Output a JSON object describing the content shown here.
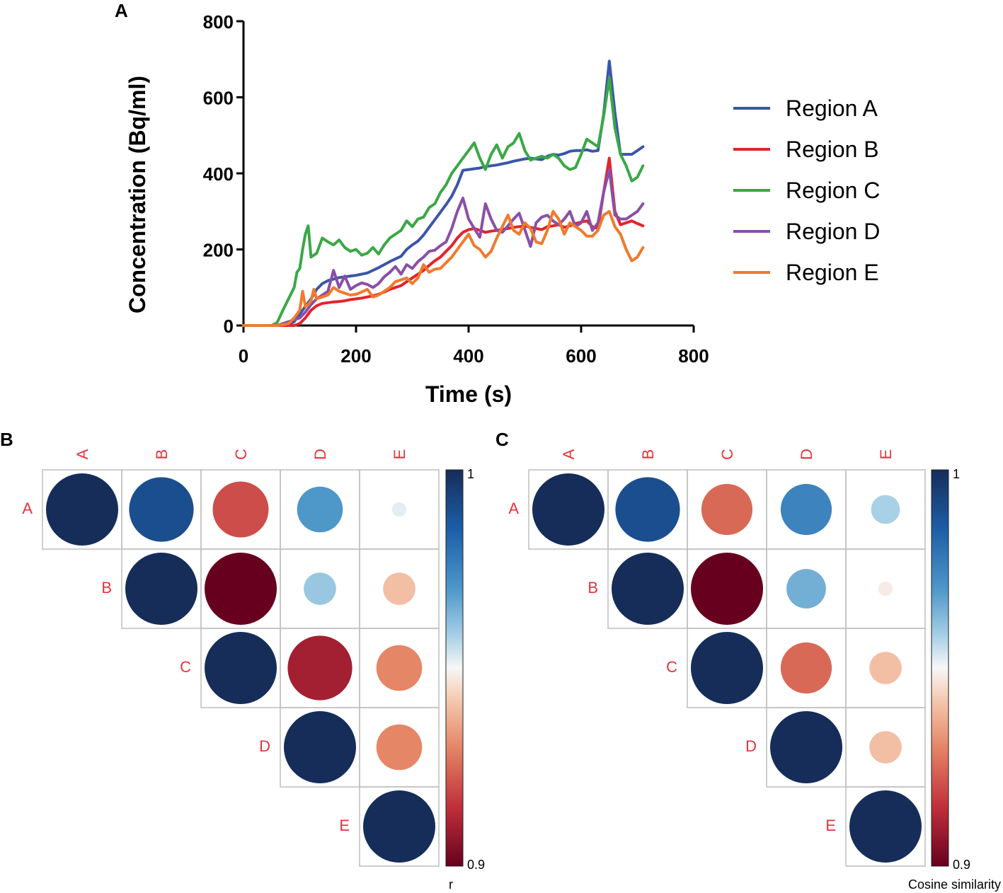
{
  "panel_labels": {
    "a": "A",
    "b": "B",
    "c": "C"
  },
  "chart_data": [
    {
      "type": "line",
      "panel": "A",
      "title": "",
      "xlabel": "Time (s)",
      "ylabel": "Concentration (Bq/ml)",
      "xlim": [
        0,
        800
      ],
      "ylim": [
        0,
        800
      ],
      "xticks": [
        0,
        200,
        400,
        600,
        800
      ],
      "yticks": [
        0,
        200,
        400,
        600,
        800
      ],
      "xtick_labels": [
        "0",
        "200",
        "400",
        "600",
        "800"
      ],
      "ytick_labels": [
        "0",
        "200",
        "400",
        "600",
        "800"
      ],
      "grid": false,
      "legend_position": "right",
      "series": [
        {
          "name": "Region A",
          "color": "#3a56a8",
          "x": [
            0,
            10,
            20,
            30,
            40,
            50,
            60,
            70,
            80,
            90,
            100,
            110,
            120,
            130,
            140,
            150,
            160,
            170,
            180,
            190,
            200,
            210,
            220,
            230,
            240,
            250,
            260,
            270,
            280,
            290,
            300,
            310,
            320,
            330,
            340,
            350,
            360,
            370,
            380,
            390,
            400,
            410,
            420,
            430,
            440,
            450,
            460,
            470,
            480,
            490,
            500,
            510,
            520,
            530,
            540,
            550,
            560,
            570,
            580,
            590,
            600,
            610,
            620,
            630,
            640,
            650,
            660,
            670,
            680,
            690,
            700,
            710
          ],
          "y": [
            0,
            0,
            0,
            0,
            0,
            0,
            0,
            0,
            2,
            10,
            30,
            50,
            70,
            95,
            110,
            118,
            122,
            126,
            128,
            130,
            132,
            135,
            138,
            145,
            152,
            160,
            168,
            175,
            182,
            200,
            212,
            222,
            238,
            258,
            278,
            298,
            318,
            340,
            370,
            408,
            410,
            412,
            414,
            418,
            420,
            422,
            425,
            428,
            432,
            435,
            438,
            440,
            438,
            436,
            445,
            450,
            448,
            452,
            458,
            460,
            460,
            462,
            458,
            460,
            555,
            695,
            560,
            450,
            450,
            450,
            460,
            470
          ]
        },
        {
          "name": "Region B",
          "color": "#e5222b",
          "x": [
            0,
            10,
            20,
            30,
            40,
            50,
            60,
            70,
            80,
            90,
            100,
            110,
            120,
            130,
            140,
            150,
            160,
            170,
            180,
            190,
            200,
            210,
            220,
            230,
            240,
            250,
            260,
            270,
            280,
            290,
            300,
            310,
            320,
            330,
            340,
            350,
            360,
            370,
            380,
            390,
            400,
            410,
            420,
            430,
            440,
            450,
            460,
            470,
            480,
            490,
            500,
            510,
            520,
            530,
            540,
            550,
            560,
            570,
            580,
            590,
            600,
            610,
            620,
            630,
            640,
            650,
            660,
            670,
            680,
            690,
            700,
            710
          ],
          "y": [
            0,
            0,
            0,
            0,
            0,
            0,
            0,
            0,
            0,
            0,
            5,
            20,
            40,
            52,
            58,
            60,
            62,
            63,
            65,
            68,
            70,
            72,
            75,
            78,
            82,
            88,
            95,
            100,
            105,
            115,
            125,
            135,
            145,
            158,
            170,
            180,
            195,
            210,
            230,
            245,
            252,
            255,
            250,
            245,
            248,
            250,
            253,
            255,
            258,
            260,
            262,
            258,
            255,
            252,
            260,
            262,
            265,
            258,
            262,
            268,
            272,
            275,
            260,
            255,
            350,
            440,
            300,
            265,
            270,
            275,
            268,
            262
          ]
        },
        {
          "name": "Region C",
          "color": "#3aa845",
          "x": [
            0,
            10,
            20,
            30,
            40,
            50,
            60,
            70,
            80,
            90,
            95,
            100,
            105,
            110,
            115,
            120,
            130,
            140,
            150,
            160,
            170,
            180,
            190,
            200,
            210,
            220,
            230,
            240,
            250,
            260,
            270,
            280,
            290,
            300,
            310,
            320,
            330,
            340,
            350,
            360,
            370,
            380,
            390,
            400,
            410,
            420,
            430,
            440,
            450,
            460,
            470,
            480,
            490,
            500,
            510,
            520,
            530,
            540,
            550,
            560,
            570,
            580,
            590,
            600,
            610,
            620,
            630,
            640,
            650,
            660,
            670,
            680,
            690,
            700,
            710
          ],
          "y": [
            0,
            0,
            0,
            0,
            0,
            0,
            8,
            40,
            70,
            100,
            140,
            150,
            200,
            240,
            262,
            180,
            190,
            230,
            220,
            212,
            225,
            205,
            195,
            200,
            185,
            190,
            205,
            188,
            212,
            230,
            240,
            250,
            275,
            260,
            280,
            285,
            310,
            320,
            350,
            370,
            400,
            420,
            440,
            460,
            480,
            440,
            410,
            450,
            475,
            440,
            470,
            480,
            505,
            460,
            435,
            440,
            445,
            440,
            450,
            440,
            420,
            410,
            415,
            450,
            490,
            480,
            470,
            550,
            650,
            520,
            450,
            420,
            380,
            390,
            420
          ]
        },
        {
          "name": "Region D",
          "color": "#8a4fa8",
          "x": [
            0,
            10,
            20,
            30,
            40,
            50,
            60,
            70,
            80,
            90,
            100,
            110,
            120,
            130,
            140,
            150,
            160,
            170,
            180,
            190,
            200,
            210,
            220,
            230,
            240,
            250,
            260,
            270,
            280,
            290,
            300,
            310,
            320,
            330,
            340,
            350,
            360,
            370,
            380,
            390,
            400,
            410,
            420,
            430,
            440,
            450,
            460,
            470,
            480,
            490,
            500,
            510,
            520,
            530,
            540,
            550,
            560,
            570,
            580,
            590,
            600,
            610,
            620,
            630,
            640,
            650,
            660,
            670,
            680,
            690,
            700,
            710
          ],
          "y": [
            0,
            0,
            0,
            0,
            0,
            0,
            0,
            5,
            10,
            15,
            20,
            35,
            55,
            70,
            80,
            90,
            145,
            100,
            130,
            95,
            105,
            112,
            108,
            100,
            110,
            128,
            140,
            155,
            135,
            160,
            150,
            168,
            180,
            195,
            198,
            210,
            220,
            255,
            300,
            335,
            280,
            255,
            232,
            320,
            280,
            250,
            245,
            262,
            280,
            295,
            252,
            208,
            270,
            285,
            290,
            275,
            265,
            280,
            300,
            260,
            270,
            300,
            250,
            270,
            350,
            410,
            290,
            280,
            280,
            290,
            300,
            320
          ]
        },
        {
          "name": "Region E",
          "color": "#f07a2b",
          "x": [
            0,
            10,
            20,
            30,
            40,
            50,
            60,
            70,
            80,
            90,
            100,
            105,
            110,
            115,
            120,
            125,
            130,
            140,
            150,
            160,
            170,
            180,
            190,
            200,
            210,
            220,
            230,
            240,
            250,
            260,
            270,
            280,
            290,
            300,
            310,
            320,
            330,
            340,
            350,
            360,
            370,
            380,
            390,
            400,
            410,
            420,
            430,
            440,
            450,
            460,
            470,
            480,
            490,
            500,
            510,
            520,
            530,
            540,
            550,
            560,
            570,
            580,
            590,
            600,
            610,
            620,
            630,
            640,
            650,
            660,
            670,
            680,
            690,
            700,
            710
          ],
          "y": [
            0,
            0,
            0,
            0,
            0,
            0,
            0,
            2,
            5,
            20,
            40,
            90,
            50,
            55,
            65,
            95,
            70,
            75,
            80,
            100,
            90,
            85,
            80,
            82,
            88,
            95,
            75,
            80,
            90,
            100,
            115,
            120,
            125,
            110,
            125,
            160,
            140,
            148,
            150,
            165,
            180,
            200,
            220,
            240,
            210,
            200,
            180,
            195,
            230,
            260,
            290,
            250,
            240,
            270,
            255,
            220,
            215,
            250,
            300,
            280,
            240,
            270,
            260,
            250,
            235,
            235,
            250,
            290,
            300,
            260,
            240,
            200,
            170,
            180,
            205
          ]
        }
      ]
    },
    {
      "type": "heatmap",
      "panel": "B",
      "subtype": "upper-triangle correlation matrix (circle size and colour encode value)",
      "labels": [
        "A",
        "B",
        "C",
        "D",
        "E"
      ],
      "colorbar_label": "r",
      "colorbar_range": [
        0.9,
        1
      ],
      "colorbar_ticks": [
        "1",
        "0.9"
      ],
      "values": [
        [
          1.0,
          0.99,
          0.92,
          0.97,
          0.952
        ],
        [
          null,
          1.0,
          0.9,
          0.96,
          0.94
        ],
        [
          null,
          null,
          1.0,
          0.91,
          0.93
        ],
        [
          null,
          null,
          null,
          1.0,
          0.93
        ],
        [
          null,
          null,
          null,
          null,
          1.0
        ]
      ]
    },
    {
      "type": "heatmap",
      "panel": "C",
      "subtype": "upper-triangle cosine-similarity matrix (circle size and colour encode value)",
      "labels": [
        "A",
        "B",
        "C",
        "D",
        "E"
      ],
      "colorbar_label": "Cosine similarity",
      "colorbar_range": [
        0.9,
        1
      ],
      "colorbar_ticks": [
        "1",
        "0.9"
      ],
      "values": [
        [
          1.0,
          0.99,
          0.925,
          0.975,
          0.958
        ],
        [
          null,
          1.0,
          0.9,
          0.965,
          0.948
        ],
        [
          null,
          null,
          1.0,
          0.925,
          0.94
        ],
        [
          null,
          null,
          null,
          1.0,
          0.94
        ],
        [
          null,
          null,
          null,
          null,
          1.0
        ]
      ]
    }
  ]
}
